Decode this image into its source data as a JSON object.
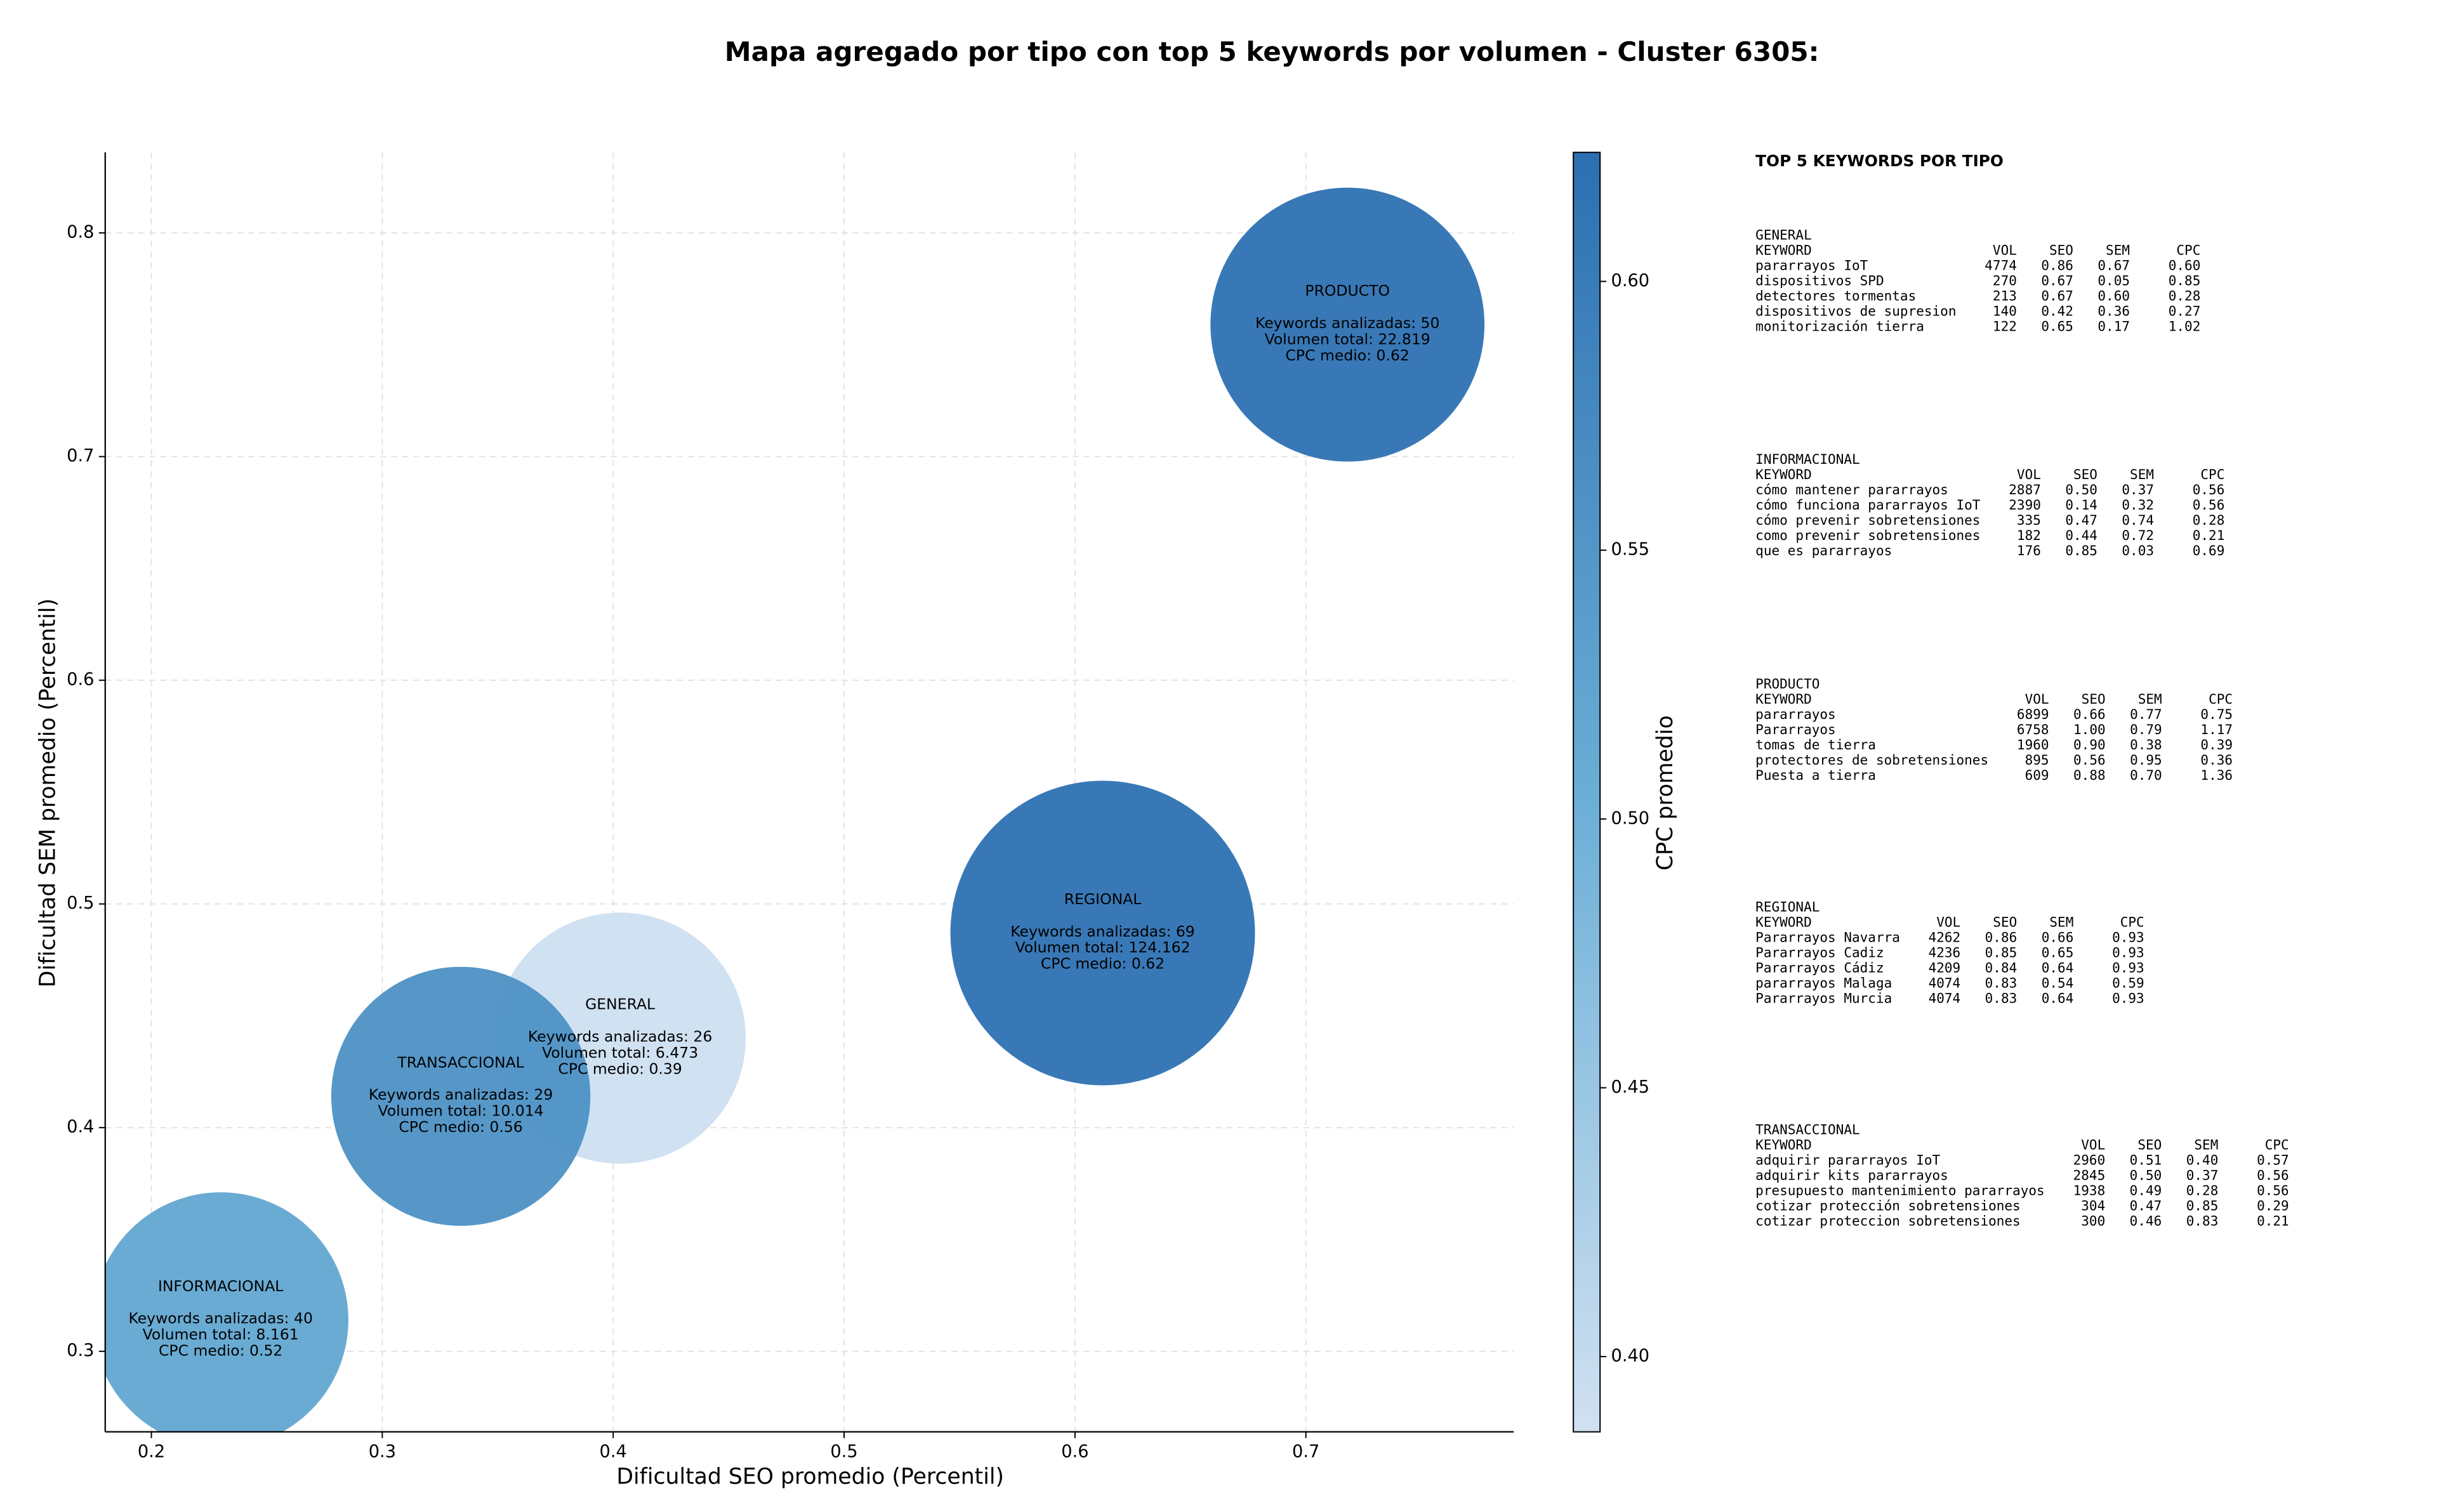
{
  "chart_data": {
    "type": "scatter",
    "title": "Mapa agregado por tipo con top 5 keywords por volumen - Cluster 6305:",
    "xlabel": "Dificultad SEO promedio (Percentil)",
    "ylabel": "Dificultad SEM promedio (Percentil)",
    "xlim": [
      0.18,
      0.79
    ],
    "ylim": [
      0.264,
      0.836
    ],
    "xticks": [
      0.2,
      0.3,
      0.4,
      0.5,
      0.6,
      0.7
    ],
    "yticks": [
      0.3,
      0.4,
      0.5,
      0.6,
      0.7,
      0.8
    ],
    "grid": true,
    "categories": [
      "GENERAL",
      "INFORMACIONAL",
      "PRODUCTO",
      "REGIONAL",
      "TRANSACCIONAL"
    ],
    "x": [
      0.403,
      0.23,
      0.718,
      0.612,
      0.334
    ],
    "y": [
      0.44,
      0.314,
      0.759,
      0.487,
      0.414
    ],
    "volume": [
      6473,
      8161,
      22819,
      124162,
      10014
    ],
    "cpc": [
      0.39,
      0.52,
      0.62,
      0.62,
      0.56
    ],
    "annotations": [
      [
        "Keywords analizadas: 26",
        "Volumen total: 6.473",
        "CPC medio: 0.39"
      ],
      [
        "Keywords analizadas: 40",
        "Volumen total: 8.161",
        "CPC medio: 0.52"
      ],
      [
        "Keywords analizadas: 50",
        "Volumen total: 22.819",
        "CPC medio: 0.62"
      ],
      [
        "Keywords analizadas: 69",
        "Volumen total: 124.162",
        "CPC medio: 0.62"
      ],
      [
        "Keywords analizadas: 29",
        "Volumen total: 10.014",
        "CPC medio: 0.56"
      ]
    ],
    "colorbar": {
      "label": "CPC promedio",
      "lim": [
        0.386,
        0.624
      ],
      "ticks": [
        {
          "value": 0.4,
          "label": "0.40"
        },
        {
          "value": 0.45,
          "label": "0.45"
        },
        {
          "value": 0.5,
          "label": "0.50"
        },
        {
          "value": 0.55,
          "label": "0.55"
        },
        {
          "value": 0.6,
          "label": "0.60"
        }
      ],
      "colors": [
        "#d0e1f2",
        "#6aaed6",
        "#2c6fb1"
      ]
    }
  },
  "side_panel": {
    "title": "TOP 5 KEYWORDS POR TIPO",
    "columns": [
      "KEYWORD",
      "VOL",
      "SEO",
      "SEM",
      "CPC"
    ],
    "groups": [
      {
        "name": "GENERAL",
        "rows": [
          [
            "pararrayos IoT",
            4774,
            "0.86",
            "0.67",
            "0.60"
          ],
          [
            "dispositivos SPD",
            270,
            "0.67",
            "0.05",
            "0.85"
          ],
          [
            "detectores tormentas",
            213,
            "0.67",
            "0.60",
            "0.28"
          ],
          [
            "dispositivos de supresion",
            140,
            "0.42",
            "0.36",
            "0.27"
          ],
          [
            "monitorización tierra",
            122,
            "0.65",
            "0.17",
            "1.02"
          ]
        ]
      },
      {
        "name": "INFORMACIONAL",
        "rows": [
          [
            "cómo mantener pararrayos",
            2887,
            "0.50",
            "0.37",
            "0.56"
          ],
          [
            "cómo funciona pararrayos IoT",
            2390,
            "0.14",
            "0.32",
            "0.56"
          ],
          [
            "cómo prevenir sobretensiones",
            335,
            "0.47",
            "0.74",
            "0.28"
          ],
          [
            "como prevenir sobretensiones",
            182,
            "0.44",
            "0.72",
            "0.21"
          ],
          [
            "que es pararrayos",
            176,
            "0.85",
            "0.03",
            "0.69"
          ]
        ]
      },
      {
        "name": "PRODUCTO",
        "rows": [
          [
            "pararrayos",
            6899,
            "0.66",
            "0.77",
            "0.75"
          ],
          [
            "Pararrayos",
            6758,
            "1.00",
            "0.79",
            "1.17"
          ],
          [
            "tomas de tierra",
            1960,
            "0.90",
            "0.38",
            "0.39"
          ],
          [
            "protectores de sobretensiones",
            895,
            "0.56",
            "0.95",
            "0.36"
          ],
          [
            "Puesta a tierra",
            609,
            "0.88",
            "0.70",
            "1.36"
          ]
        ]
      },
      {
        "name": "REGIONAL",
        "rows": [
          [
            "Pararrayos Navarra",
            4262,
            "0.86",
            "0.66",
            "0.93"
          ],
          [
            "Pararrayos Cadiz",
            4236,
            "0.85",
            "0.65",
            "0.93"
          ],
          [
            "Pararrayos Cádiz",
            4209,
            "0.84",
            "0.64",
            "0.93"
          ],
          [
            "pararrayos Malaga",
            4074,
            "0.83",
            "0.54",
            "0.59"
          ],
          [
            "Pararrayos Murcia",
            4074,
            "0.83",
            "0.64",
            "0.93"
          ]
        ]
      },
      {
        "name": "TRANSACCIONAL",
        "rows": [
          [
            "adquirir pararrayos IoT",
            2960,
            "0.51",
            "0.40",
            "0.57"
          ],
          [
            "adquirir kits pararrayos",
            2845,
            "0.50",
            "0.37",
            "0.56"
          ],
          [
            "presupuesto mantenimiento pararrayos",
            1938,
            "0.49",
            "0.28",
            "0.56"
          ],
          [
            "cotizar protección sobretensiones",
            304,
            "0.47",
            "0.85",
            "0.29"
          ],
          [
            "cotizar proteccion sobretensiones",
            300,
            "0.46",
            "0.83",
            "0.21"
          ]
        ]
      }
    ]
  }
}
